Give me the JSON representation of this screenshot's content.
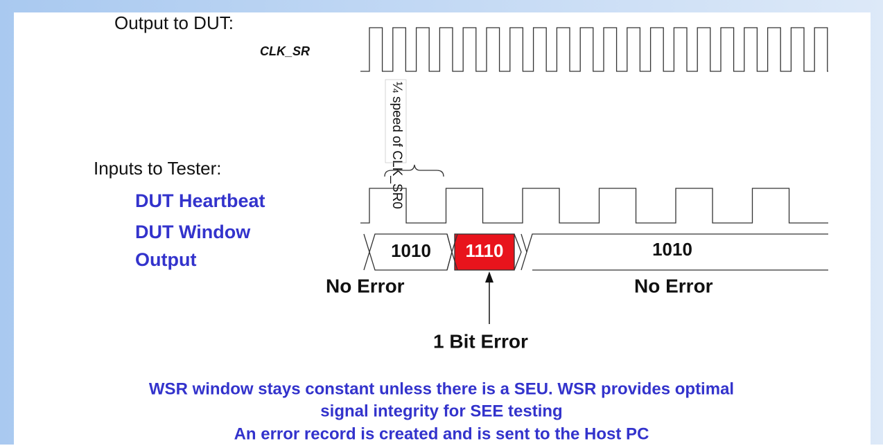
{
  "output_section": {
    "title": "Output to DUT:",
    "signal": "CLK_SR",
    "note": "¼ speed of CLK_SR0"
  },
  "input_section": {
    "title": "Inputs to Tester:",
    "heartbeat": "DUT Heartbeat",
    "window_line1": "DUT Window",
    "window_line2": "Output"
  },
  "bus": {
    "word1": "1010",
    "word2": "1110",
    "word3": "1010"
  },
  "status": {
    "left": "No Error",
    "right": "No Error",
    "error": "1 Bit Error"
  },
  "footer": {
    "line1": "WSR window stays constant unless there is a SEU.  WSR provides optimal",
    "line2": "signal integrity for SEE testing",
    "line3": "An error record is created and is sent to the Host PC"
  }
}
